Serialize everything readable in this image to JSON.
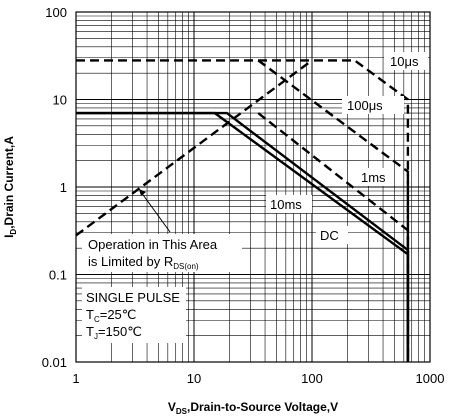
{
  "chart_data": {
    "type": "line",
    "x_scale": "log",
    "y_scale": "log",
    "xlim": [
      1,
      1000
    ],
    "ylim": [
      0.01,
      100
    ],
    "grid": true,
    "x_ticks": [
      "1",
      "10",
      "100",
      "1000"
    ],
    "y_ticks": [
      "100",
      "10",
      "1",
      "0.1",
      "0.01"
    ],
    "xlabel": {
      "main": "V",
      "sub": "DS",
      "rest": ",Drain-to-Source Voltage,V"
    },
    "ylabel": {
      "main": "I",
      "sub": "D",
      "rest": ",Drain Current,A"
    },
    "series": [
      {
        "name": "10μs",
        "style": "dashed",
        "points": [
          [
            1,
            28
          ],
          [
            230,
            28
          ],
          [
            650,
            10
          ],
          [
            650,
            0.01
          ]
        ]
      },
      {
        "name": "100μs",
        "style": "dashed",
        "points": [
          [
            35,
            28
          ],
          [
            650,
            1.5
          ],
          [
            650,
            0.01
          ]
        ]
      },
      {
        "name": "1ms",
        "style": "dashed",
        "points": [
          [
            35,
            7
          ],
          [
            650,
            0.32
          ],
          [
            650,
            0.01
          ]
        ]
      },
      {
        "name": "10ms",
        "style": "solid",
        "points": [
          [
            1,
            7
          ],
          [
            19,
            7
          ],
          [
            650,
            0.19
          ],
          [
            650,
            0.01
          ]
        ]
      },
      {
        "name": "DC",
        "style": "solid",
        "points": [
          [
            1,
            7
          ],
          [
            15,
            7
          ],
          [
            650,
            0.17
          ],
          [
            650,
            0.01
          ]
        ]
      },
      {
        "name": "",
        "style": "dashed",
        "points": [
          [
            1,
            0.28
          ],
          [
            100,
            28
          ]
        ]
      }
    ],
    "annotations": {
      "rds_line1": "Operation in This Area",
      "rds_line2_main": "is Limited by R",
      "rds_line2_sub": "DS(on)",
      "single_pulse": "SINGLE PULSE",
      "tc_main": "T",
      "tc_sub": "C",
      "tc_rest": "=25℃",
      "tj_main": "T",
      "tj_sub": "J",
      "tj_rest": "=150℃"
    }
  }
}
